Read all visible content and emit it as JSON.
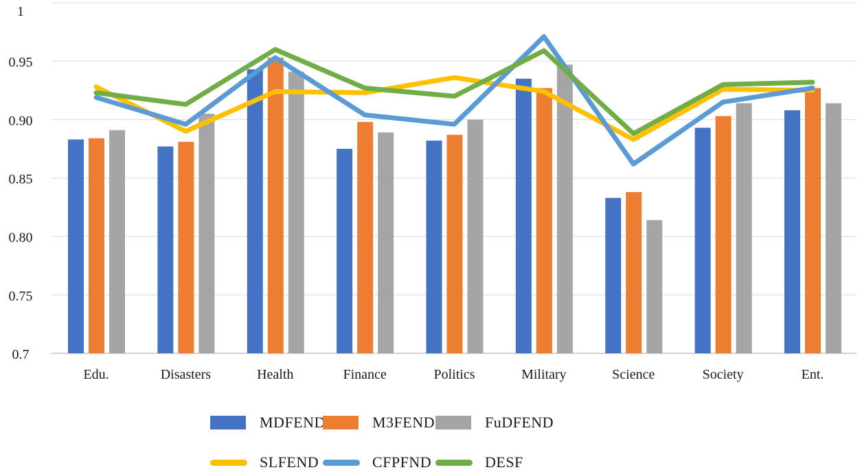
{
  "chart_data": {
    "type": "bar-line-combo",
    "title": "",
    "xlabel": "",
    "ylabel": "",
    "categories": [
      "Edu.",
      "Disasters",
      "Health",
      "Finance",
      "Politics",
      "Military",
      "Science",
      "Society",
      "Ent."
    ],
    "ylim": [
      0.7,
      1.0
    ],
    "grid": "horizontal",
    "legend_position": "bottom",
    "yticks": [
      {
        "label": "1",
        "value": 1.0
      },
      {
        "label": "0.95",
        "value": 0.95
      },
      {
        "label": "0.90",
        "value": 0.9
      },
      {
        "label": "0.85",
        "value": 0.85
      },
      {
        "label": "0.80",
        "value": 0.8
      },
      {
        "label": "0.75",
        "value": 0.75
      },
      {
        "label": "0.7",
        "value": 0.7
      }
    ],
    "bar_series": [
      {
        "name": "MDFEND",
        "color": "#4472C4",
        "values": [
          0.883,
          0.877,
          0.943,
          0.875,
          0.882,
          0.935,
          0.833,
          0.893,
          0.908
        ]
      },
      {
        "name": "M3FEND",
        "color": "#ED7D31",
        "values": [
          0.884,
          0.881,
          0.953,
          0.898,
          0.887,
          0.927,
          0.838,
          0.903,
          0.927
        ]
      },
      {
        "name": "FuDFEND",
        "color": "#A5A5A5",
        "values": [
          0.891,
          0.905,
          0.941,
          0.889,
          0.9,
          0.947,
          0.814,
          0.914,
          0.914
        ]
      }
    ],
    "line_series": [
      {
        "name": "SLFEND",
        "color": "#FFC000",
        "values": [
          0.928,
          0.89,
          0.924,
          0.923,
          0.936,
          0.924,
          0.883,
          0.926,
          0.925
        ]
      },
      {
        "name": "CFPFND",
        "color": "#5B9BD5",
        "values": [
          0.919,
          0.896,
          0.953,
          0.904,
          0.896,
          0.971,
          0.862,
          0.915,
          0.927
        ]
      },
      {
        "name": "DESF",
        "color": "#70AD47",
        "values": [
          0.923,
          0.913,
          0.96,
          0.927,
          0.92,
          0.959,
          0.888,
          0.93,
          0.932
        ]
      }
    ],
    "colors": {
      "gridline": "#dadada",
      "axis_line": "#c3c3c3",
      "text": "#1a1a1a"
    }
  }
}
